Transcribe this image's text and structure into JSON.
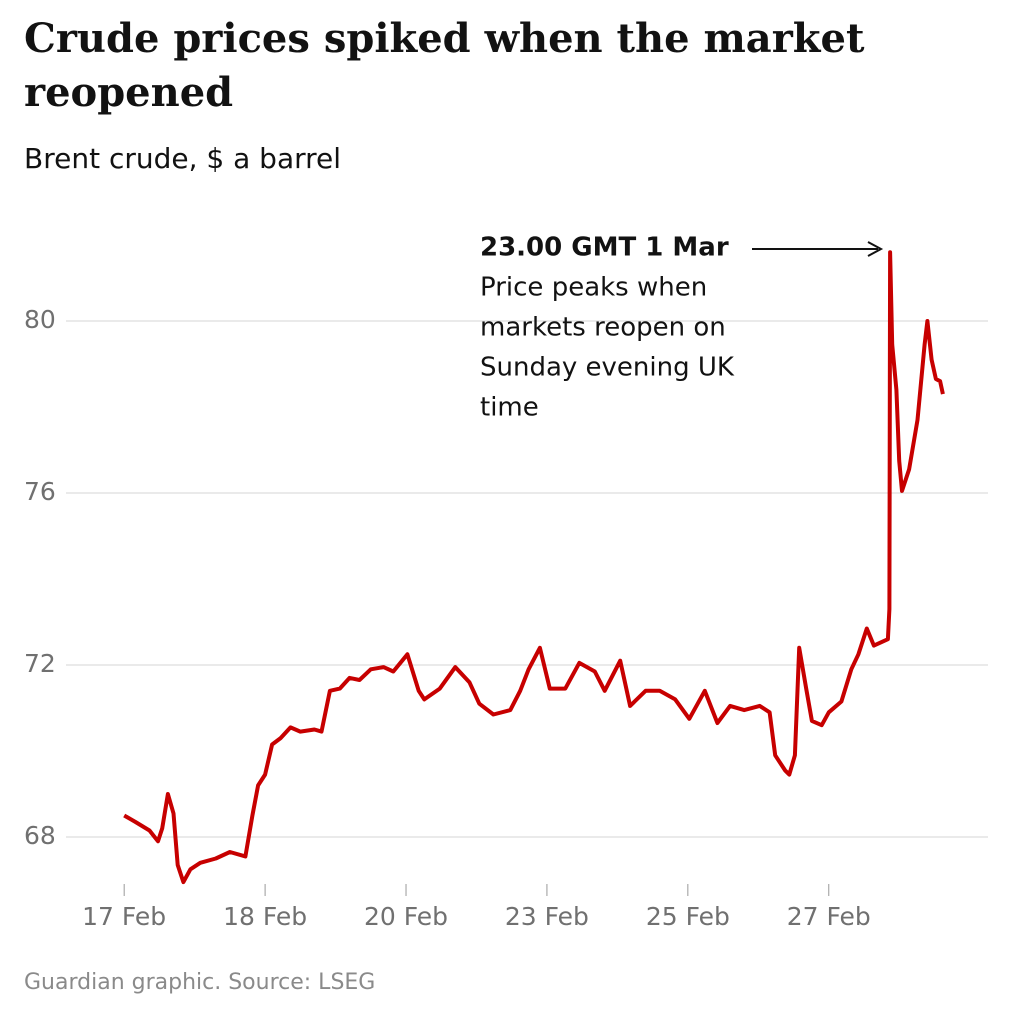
{
  "chart_data": {
    "type": "line",
    "title": "Crude prices spiked when the market",
    "title_line2": "reopened",
    "subtitle": "Brent crude, $ a barrel",
    "source": "Guardian graphic. Source: LSEG",
    "annotation": {
      "heading": "23.00 GMT 1 Mar",
      "lines": [
        "Price peaks when",
        "markets reopen on",
        "Sunday evening UK",
        "time"
      ]
    },
    "grid": true,
    "xlim": [
      -0.2,
      6.13
    ],
    "ylim": [
      67,
      82
    ],
    "xticks": [
      {
        "value": 0,
        "label": "17 Feb"
      },
      {
        "value": 1,
        "label": "18 Feb"
      },
      {
        "value": 2,
        "label": "20 Feb"
      },
      {
        "value": 3,
        "label": "23 Feb"
      },
      {
        "value": 4,
        "label": "25 Feb"
      },
      {
        "value": 5,
        "label": "27 Feb"
      }
    ],
    "yticks": [
      68,
      72,
      76,
      80
    ],
    "series": [
      {
        "name": "Brent crude",
        "color": "#c70000",
        "x": [
          0,
          0.08,
          0.18,
          0.24,
          0.27,
          0.31,
          0.35,
          0.38,
          0.42,
          0.47,
          0.54,
          0.65,
          0.75,
          0.86,
          0.91,
          0.95,
          1.0,
          1.05,
          1.11,
          1.18,
          1.25,
          1.35,
          1.4,
          1.46,
          1.53,
          1.6,
          1.67,
          1.75,
          1.84,
          1.91,
          2.01,
          2.09,
          2.13,
          2.24,
          2.35,
          2.45,
          2.52,
          2.62,
          2.74,
          2.81,
          2.87,
          2.95,
          3.02,
          3.13,
          3.23,
          3.34,
          3.41,
          3.52,
          3.59,
          3.7,
          3.8,
          3.91,
          4.01,
          4.12,
          4.21,
          4.3,
          4.4,
          4.51,
          4.58,
          4.62,
          4.69,
          4.72,
          4.76,
          4.79,
          4.84,
          4.88,
          4.95,
          5.0,
          5.09,
          5.16,
          5.21,
          5.27,
          5.32,
          5.42,
          5.43,
          5.435,
          5.45,
          5.48,
          5.5,
          5.52,
          5.57,
          5.63,
          5.68,
          5.7,
          5.73,
          5.76,
          5.79,
          5.81
        ],
        "values": [
          68.5,
          68.35,
          68.15,
          67.9,
          68.2,
          69.0,
          68.55,
          67.35,
          66.95,
          67.25,
          67.4,
          67.5,
          67.65,
          67.55,
          68.5,
          69.2,
          69.45,
          70.15,
          70.3,
          70.55,
          70.45,
          70.5,
          70.45,
          71.4,
          71.45,
          71.7,
          71.65,
          71.9,
          71.95,
          71.85,
          72.25,
          71.4,
          71.2,
          71.45,
          71.95,
          71.6,
          71.1,
          70.85,
          70.95,
          71.4,
          71.9,
          72.4,
          71.45,
          71.45,
          72.05,
          71.85,
          71.4,
          72.1,
          71.05,
          71.4,
          71.4,
          71.2,
          70.75,
          71.4,
          70.65,
          71.05,
          70.95,
          71.05,
          70.9,
          69.9,
          69.55,
          69.45,
          69.9,
          72.4,
          71.45,
          70.7,
          70.6,
          70.9,
          71.15,
          71.9,
          72.25,
          72.85,
          72.45,
          72.6,
          73.3,
          81.6,
          79.45,
          78.4,
          76.75,
          76.05,
          76.55,
          77.7,
          79.45,
          80.0,
          79.1,
          78.65,
          78.6,
          78.3
        ]
      }
    ]
  }
}
